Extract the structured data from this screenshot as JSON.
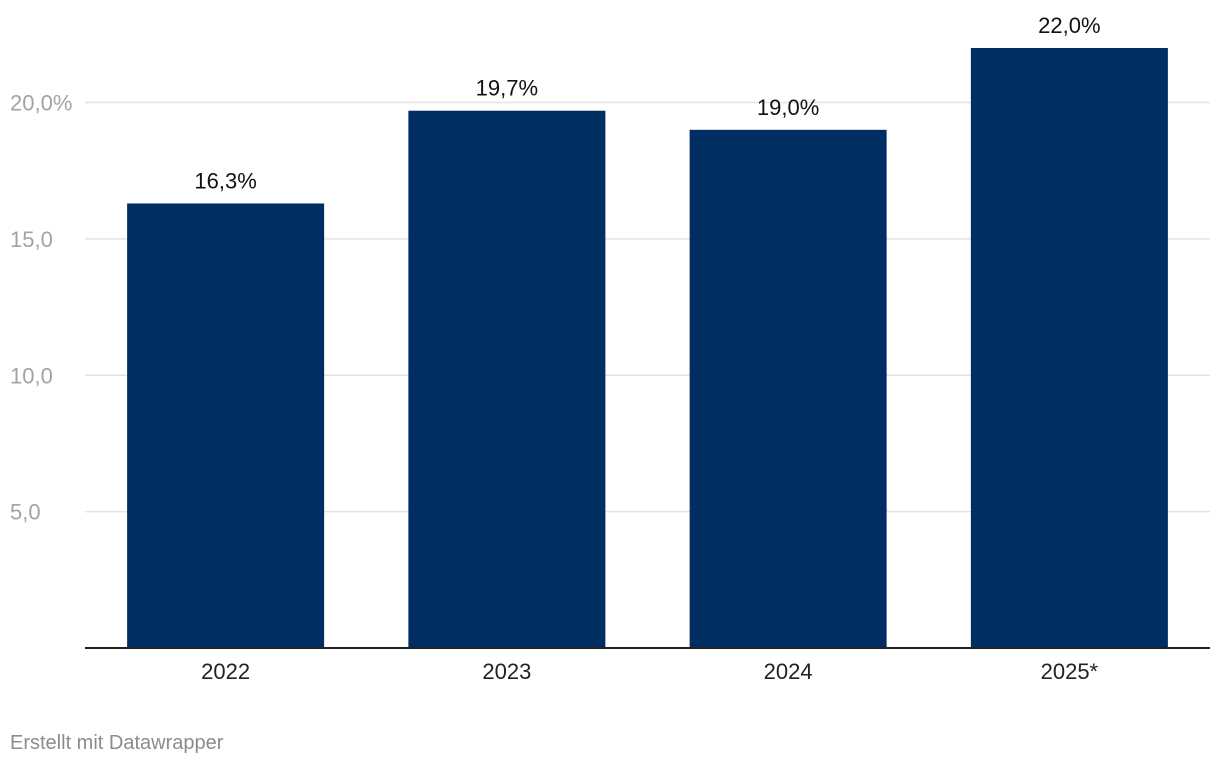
{
  "chart_data": {
    "type": "bar",
    "categories": [
      "2022",
      "2023",
      "2024",
      "2025*"
    ],
    "values": [
      16.3,
      19.7,
      19.0,
      22.0
    ],
    "value_labels": [
      "16,3%",
      "19,7%",
      "19,0%",
      "22,0%"
    ],
    "y_ticks": [
      {
        "value": 5,
        "label": "5,0"
      },
      {
        "value": 10,
        "label": "10,0"
      },
      {
        "value": 15,
        "label": "15,0"
      },
      {
        "value": 20,
        "label": "20,0%"
      }
    ],
    "ylim": [
      0,
      22
    ],
    "grid": true,
    "bar_color": "#002d62",
    "gridline_color": "#e3e3e3",
    "baseline_color": "#222222"
  },
  "footer": {
    "credit": "Erstellt mit Datawrapper"
  }
}
